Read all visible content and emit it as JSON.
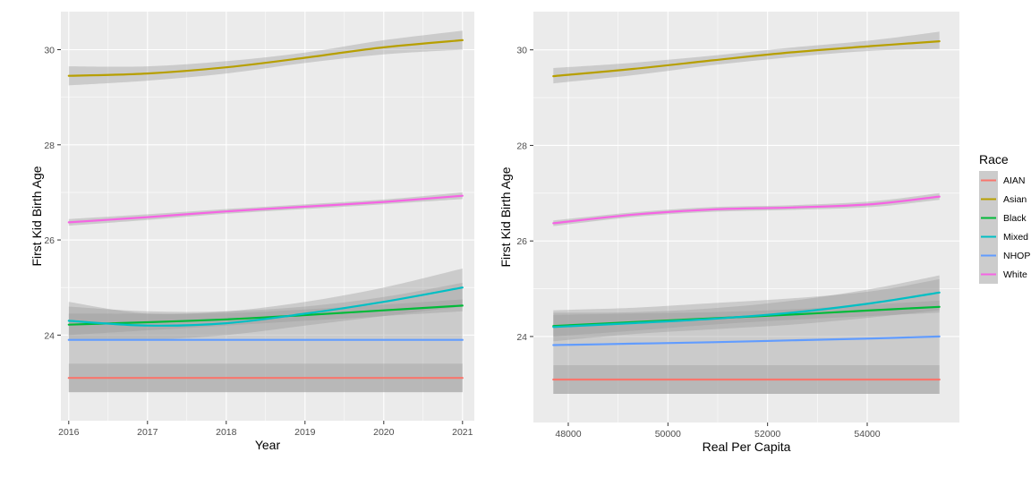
{
  "chart_data": [
    {
      "type": "line",
      "xlabel": "Year",
      "ylabel": "First Kid Birth Age",
      "xlim": [
        2015.9,
        2021.15
      ],
      "ylim": [
        22.2,
        30.8
      ],
      "x_ticks": [
        2016,
        2017,
        2018,
        2019,
        2020,
        2021
      ],
      "x_tick_labels": [
        "2016",
        "2017",
        "2018",
        "2019",
        "2020",
        "2021"
      ],
      "y_ticks": [
        24,
        26,
        28,
        30
      ],
      "y_tick_labels": [
        "24",
        "26",
        "28",
        "30"
      ],
      "grid": true,
      "series": [
        {
          "name": "AIAN",
          "x": [
            2016,
            2017,
            2018,
            2019,
            2020,
            2021
          ],
          "values": [
            23.1,
            23.1,
            23.1,
            23.1,
            23.1,
            23.1
          ],
          "lower": [
            22.8,
            22.8,
            22.8,
            22.8,
            22.8,
            22.8
          ],
          "upper": [
            23.4,
            23.4,
            23.4,
            23.4,
            23.4,
            23.4
          ]
        },
        {
          "name": "Asian",
          "x": [
            2016,
            2017,
            2018,
            2019,
            2020,
            2021
          ],
          "values": [
            29.45,
            29.5,
            29.63,
            29.83,
            30.05,
            30.2
          ],
          "lower": [
            29.25,
            29.35,
            29.5,
            29.72,
            29.9,
            30.0
          ],
          "upper": [
            29.65,
            29.65,
            29.76,
            29.94,
            30.2,
            30.4
          ]
        },
        {
          "name": "Black",
          "x": [
            2016,
            2017,
            2018,
            2019,
            2020,
            2021
          ],
          "values": [
            24.22,
            24.27,
            24.33,
            24.42,
            24.52,
            24.62
          ],
          "lower": [
            24.0,
            24.1,
            24.2,
            24.3,
            24.4,
            24.5
          ],
          "upper": [
            24.45,
            24.45,
            24.46,
            24.54,
            24.64,
            24.75
          ]
        },
        {
          "name": "Mixed",
          "x": [
            2016,
            2017,
            2018,
            2019,
            2020,
            2021
          ],
          "values": [
            24.3,
            24.2,
            24.25,
            24.45,
            24.7,
            25.0
          ],
          "lower": [
            23.9,
            23.9,
            24.0,
            24.2,
            24.4,
            24.6
          ],
          "upper": [
            24.7,
            24.45,
            24.5,
            24.7,
            25.0,
            25.4
          ]
        },
        {
          "name": "NHOP",
          "x": [
            2016,
            2017,
            2018,
            2019,
            2020,
            2021
          ],
          "values": [
            23.9,
            23.9,
            23.9,
            23.9,
            23.9,
            23.9
          ],
          "lower": [
            22.8,
            22.8,
            22.8,
            22.8,
            22.8,
            22.8
          ],
          "upper": [
            24.6,
            24.5,
            24.5,
            24.6,
            24.8,
            25.1
          ]
        },
        {
          "name": "White",
          "x": [
            2016,
            2017,
            2018,
            2019,
            2020,
            2021
          ],
          "values": [
            26.37,
            26.48,
            26.6,
            26.7,
            26.8,
            26.93
          ],
          "lower": [
            26.3,
            26.42,
            26.55,
            26.65,
            26.75,
            26.86
          ],
          "upper": [
            26.44,
            26.54,
            26.65,
            26.75,
            26.85,
            27.0
          ]
        }
      ]
    },
    {
      "type": "line",
      "xlabel": "Real Per Capita",
      "ylabel": "First Kid Birth Age",
      "xlim": [
        47300,
        55850
      ],
      "ylim": [
        22.2,
        30.8
      ],
      "x_ticks": [
        48000,
        50000,
        52000,
        54000
      ],
      "x_tick_labels": [
        "48000",
        "50000",
        "52000",
        "54000"
      ],
      "y_ticks": [
        24,
        26,
        28,
        30
      ],
      "y_tick_labels": [
        "24",
        "26",
        "28",
        "30"
      ],
      "grid": true,
      "series": [
        {
          "name": "AIAN",
          "x": [
            47700,
            49300,
            50900,
            52500,
            54100,
            55450
          ],
          "values": [
            23.1,
            23.1,
            23.1,
            23.1,
            23.1,
            23.1
          ],
          "lower": [
            22.8,
            22.8,
            22.8,
            22.8,
            22.8,
            22.8
          ],
          "upper": [
            23.4,
            23.4,
            23.4,
            23.4,
            23.4,
            23.4
          ]
        },
        {
          "name": "Asian",
          "x": [
            47700,
            49300,
            50900,
            52500,
            54100,
            55450
          ],
          "values": [
            29.45,
            29.6,
            29.78,
            29.95,
            30.08,
            30.18
          ],
          "lower": [
            29.3,
            29.47,
            29.68,
            29.85,
            29.98,
            30.02
          ],
          "upper": [
            29.62,
            29.73,
            29.88,
            30.05,
            30.2,
            30.38
          ]
        },
        {
          "name": "Black",
          "x": [
            47700,
            49300,
            50900,
            52500,
            54100,
            55450
          ],
          "values": [
            24.22,
            24.3,
            24.38,
            24.46,
            24.55,
            24.62
          ],
          "lower": [
            24.0,
            24.12,
            24.25,
            24.35,
            24.43,
            24.5
          ],
          "upper": [
            24.45,
            24.48,
            24.51,
            24.57,
            24.67,
            24.75
          ]
        },
        {
          "name": "Mixed",
          "x": [
            47700,
            49300,
            50900,
            52500,
            54100,
            55450
          ],
          "values": [
            24.2,
            24.28,
            24.37,
            24.5,
            24.7,
            24.92
          ],
          "lower": [
            23.9,
            24.05,
            24.15,
            24.25,
            24.4,
            24.55
          ],
          "upper": [
            24.5,
            24.51,
            24.59,
            24.75,
            25.0,
            25.28
          ]
        },
        {
          "name": "NHOP",
          "x": [
            47700,
            49300,
            50900,
            52500,
            54100,
            55450
          ],
          "values": [
            23.82,
            23.85,
            23.88,
            23.92,
            23.96,
            24.0
          ],
          "lower": [
            22.8,
            22.8,
            22.8,
            22.8,
            22.8,
            22.8
          ],
          "upper": [
            24.55,
            24.6,
            24.7,
            24.8,
            24.95,
            25.2
          ]
        },
        {
          "name": "White",
          "x": [
            47700,
            49300,
            50900,
            52500,
            54100,
            55450
          ],
          "values": [
            26.37,
            26.55,
            26.66,
            26.7,
            26.77,
            26.93
          ],
          "lower": [
            26.31,
            26.5,
            26.61,
            26.65,
            26.71,
            26.86
          ],
          "upper": [
            26.43,
            26.6,
            26.71,
            26.75,
            26.83,
            27.0
          ]
        }
      ]
    }
  ],
  "legend": {
    "title": "Race",
    "placement": "right",
    "items": [
      {
        "label": "AIAN",
        "color": "#F8766D"
      },
      {
        "label": "Asian",
        "color": "#B79F00"
      },
      {
        "label": "Black",
        "color": "#00BA38"
      },
      {
        "label": "Mixed",
        "color": "#00BFC4"
      },
      {
        "label": "NHOP",
        "color": "#619CFF"
      },
      {
        "label": "White",
        "color": "#F564E3"
      }
    ]
  },
  "colors": {
    "panel_bg": "#EBEBEB",
    "grid": "#FFFFFF",
    "ribbon": "#999999",
    "AIAN": "#F8766D",
    "Asian": "#B79F00",
    "Black": "#00BA38",
    "Mixed": "#00BFC4",
    "NHOP": "#619CFF",
    "White": "#F564E3"
  }
}
